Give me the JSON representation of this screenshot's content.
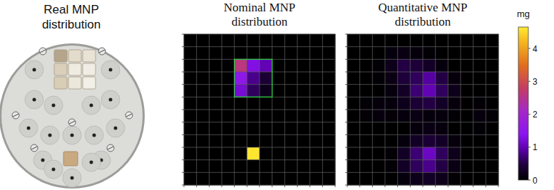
{
  "photo": {
    "title": "Real MNP distribution"
  },
  "chart_data": [
    {
      "type": "heatmap",
      "title": "Nominal MNP distribution",
      "grid": true,
      "tick_labels": false,
      "highlight": {
        "rows": [
          2,
          4
        ],
        "cols": [
          4,
          6
        ]
      },
      "cells": [
        [
          0,
          0,
          0,
          0,
          0,
          0,
          0,
          0,
          0,
          0,
          0,
          0
        ],
        [
          0,
          0,
          0,
          0,
          0,
          0,
          0,
          0,
          0,
          0,
          0,
          0
        ],
        [
          0,
          0,
          0,
          0,
          2.6,
          1.3,
          1.0,
          0,
          0,
          0,
          0,
          0
        ],
        [
          0,
          0,
          0,
          0,
          1.5,
          0.8,
          0.4,
          0,
          0,
          0,
          0,
          0
        ],
        [
          0,
          0,
          0,
          0,
          1.2,
          0.6,
          0.2,
          0,
          0,
          0,
          0,
          0
        ],
        [
          0,
          0,
          0,
          0,
          0,
          0,
          0,
          0,
          0,
          0,
          0,
          0
        ],
        [
          0,
          0,
          0,
          0,
          0,
          0,
          0,
          0,
          0,
          0,
          0,
          0
        ],
        [
          0,
          0,
          0,
          0,
          0,
          0,
          0,
          0,
          0,
          0,
          0,
          0
        ],
        [
          0,
          0,
          0,
          0,
          0,
          0,
          0,
          0,
          0,
          0,
          0,
          0
        ],
        [
          0,
          0,
          0,
          0,
          0,
          4.6,
          0,
          0,
          0,
          0,
          0,
          0
        ],
        [
          0,
          0,
          0,
          0,
          0,
          0,
          0,
          0,
          0,
          0,
          0,
          0
        ],
        [
          0,
          0,
          0,
          0,
          0,
          0,
          0,
          0,
          0,
          0,
          0,
          0
        ]
      ]
    },
    {
      "type": "heatmap",
      "title": "Quantitative MNP distribution",
      "grid": true,
      "tick_labels": false,
      "cells": [
        [
          0,
          0,
          0,
          0,
          0,
          0,
          0,
          0,
          0,
          0,
          0,
          0
        ],
        [
          0,
          0,
          0,
          0.1,
          0.15,
          0.1,
          0.05,
          0,
          0,
          0,
          0,
          0
        ],
        [
          0,
          0,
          0.05,
          0.2,
          0.5,
          0.45,
          0.3,
          0.1,
          0,
          0,
          0,
          0
        ],
        [
          0,
          0,
          0.05,
          0.15,
          0.45,
          0.6,
          0.9,
          0.5,
          0.1,
          0,
          0,
          0
        ],
        [
          0,
          0,
          0,
          0.1,
          0.3,
          0.7,
          1.0,
          0.6,
          0.2,
          0,
          0,
          0
        ],
        [
          0,
          0.05,
          0.1,
          0.1,
          0.2,
          0.4,
          0.5,
          0.3,
          0.1,
          0,
          0.05,
          0
        ],
        [
          0,
          0.05,
          0.1,
          0.05,
          0.1,
          0.15,
          0.1,
          0.1,
          0.05,
          0,
          0.1,
          0.05
        ],
        [
          0,
          0,
          0,
          0,
          0,
          0.1,
          0.15,
          0.1,
          0,
          0,
          0.05,
          0
        ],
        [
          0,
          0,
          0,
          0,
          0.1,
          0.3,
          0.4,
          0.3,
          0.1,
          0,
          0,
          0
        ],
        [
          0,
          0,
          0,
          0.05,
          0.3,
          0.7,
          1.1,
          0.6,
          0.2,
          0,
          0,
          0
        ],
        [
          0,
          0,
          0,
          0.05,
          0.3,
          0.6,
          0.8,
          0.5,
          0.15,
          0,
          0,
          0
        ],
        [
          0,
          0,
          0,
          0,
          0.1,
          0.2,
          0.3,
          0.2,
          0.05,
          0,
          0,
          0
        ]
      ]
    }
  ],
  "colorbar": {
    "label": "mg",
    "range": [
      0,
      4.65
    ],
    "ticks": [
      0,
      1,
      2,
      3,
      4
    ]
  }
}
